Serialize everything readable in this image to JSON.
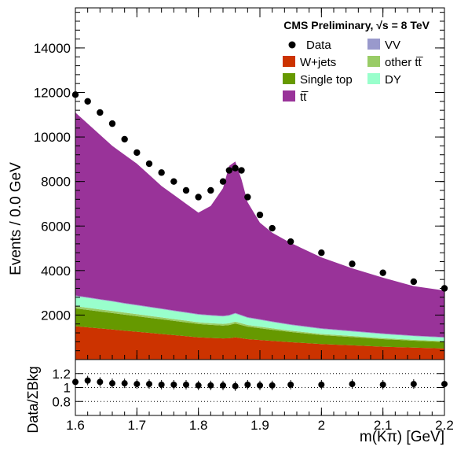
{
  "chart_data": [
    {
      "type": "area",
      "style": "stacked-histogram-with-data-points",
      "header": "CMS Preliminary, √s = 8 TeV",
      "ylabel": "Events / 0.0 GeV",
      "xlim": [
        1.6,
        2.2
      ],
      "ylim": [
        0,
        15800
      ],
      "y_ticks": [
        2000,
        4000,
        6000,
        8000,
        10000,
        12000,
        14000
      ],
      "y_tick_labels": [
        "2000",
        "4000",
        "6000",
        "8000",
        "10000",
        "12000",
        "14000"
      ],
      "legend_position": "top-right",
      "legend": [
        {
          "label": "Data",
          "kind": "marker"
        },
        {
          "label": "VV",
          "kind": "fill",
          "color": "#9999cc"
        },
        {
          "label": "W+jets",
          "kind": "fill",
          "color": "#cc3300"
        },
        {
          "label": "other tt̅",
          "kind": "fill",
          "color": "#99cc66"
        },
        {
          "label": "Single top",
          "kind": "fill",
          "color": "#669900"
        },
        {
          "label": "DY",
          "kind": "fill",
          "color": "#99ffcc"
        },
        {
          "label": "tt̅",
          "kind": "fill",
          "color": "#993399"
        }
      ],
      "x": [
        1.6,
        1.62,
        1.64,
        1.66,
        1.68,
        1.7,
        1.72,
        1.74,
        1.76,
        1.78,
        1.8,
        1.82,
        1.84,
        1.85,
        1.86,
        1.87,
        1.88,
        1.9,
        1.92,
        1.95,
        2.0,
        2.05,
        2.1,
        2.15,
        2.2
      ],
      "series": [
        {
          "name": "W+jets",
          "color": "#cc3300",
          "values": [
            1500,
            1450,
            1400,
            1350,
            1300,
            1250,
            1200,
            1150,
            1100,
            1050,
            1000,
            970,
            950,
            960,
            1000,
            960,
            920,
            880,
            840,
            780,
            700,
            640,
            580,
            540,
            500
          ]
        },
        {
          "name": "Single top",
          "color": "#669900",
          "values": [
            800,
            780,
            760,
            740,
            720,
            700,
            680,
            660,
            640,
            620,
            600,
            590,
            580,
            590,
            620,
            590,
            560,
            530,
            500,
            460,
            400,
            370,
            340,
            310,
            290
          ]
        },
        {
          "name": "other tt̅",
          "color": "#99cc66",
          "values": [
            100,
            100,
            95,
            95,
            90,
            90,
            85,
            85,
            80,
            80,
            75,
            75,
            75,
            80,
            85,
            80,
            75,
            70,
            65,
            60,
            55,
            50,
            45,
            40,
            40
          ]
        },
        {
          "name": "DY",
          "color": "#99ffcc",
          "values": [
            450,
            440,
            430,
            420,
            400,
            390,
            380,
            370,
            360,
            350,
            340,
            335,
            330,
            340,
            360,
            340,
            320,
            300,
            280,
            250,
            220,
            200,
            180,
            160,
            150
          ]
        },
        {
          "name": "VV",
          "color": "#9999cc",
          "values": [
            30,
            30,
            30,
            30,
            30,
            30,
            30,
            30,
            30,
            30,
            30,
            30,
            30,
            30,
            30,
            30,
            30,
            30,
            30,
            30,
            30,
            30,
            30,
            30,
            30
          ]
        },
        {
          "name": "tt̅",
          "color": "#993399",
          "values": [
            8220,
            7800,
            7385,
            6965,
            6660,
            6340,
            5925,
            5505,
            5190,
            4870,
            4555,
            4900,
            5735,
            6700,
            6805,
            6100,
            5165,
            4340,
            3985,
            3660,
            3185,
            2810,
            2505,
            2220,
            2090
          ]
        }
      ],
      "data_points": {
        "name": "Data",
        "x": [
          1.6,
          1.62,
          1.64,
          1.66,
          1.68,
          1.7,
          1.72,
          1.74,
          1.76,
          1.78,
          1.8,
          1.82,
          1.84,
          1.85,
          1.86,
          1.87,
          1.88,
          1.9,
          1.92,
          1.95,
          2.0,
          2.05,
          2.1,
          2.15,
          2.2
        ],
        "y": [
          11900,
          11600,
          11100,
          10600,
          9900,
          9300,
          8800,
          8400,
          8000,
          7600,
          7300,
          7600,
          8000,
          8500,
          8600,
          8500,
          7300,
          6500,
          5900,
          5300,
          4800,
          4300,
          3900,
          3500,
          3200
        ]
      }
    },
    {
      "type": "scatter",
      "ylabel": "Data/ΣBkg",
      "xlabel": "m(Kπ) [GeV]",
      "xlim": [
        1.6,
        2.2
      ],
      "ylim": [
        0.6,
        1.4
      ],
      "y_ticks": [
        0.8,
        1.0,
        1.2
      ],
      "y_tick_labels": [
        "0.8",
        "1",
        "1.2"
      ],
      "x_ticks": [
        1.6,
        1.7,
        1.8,
        1.9,
        2.0,
        2.1,
        2.2
      ],
      "x_tick_labels": [
        "1.6",
        "1.7",
        "1.8",
        "1.9",
        "2",
        "2.1",
        "2.2"
      ],
      "grid": "dotted horizontal lines at 0.8, 1.0, 1.2",
      "x": [
        1.6,
        1.62,
        1.64,
        1.66,
        1.68,
        1.7,
        1.72,
        1.74,
        1.76,
        1.78,
        1.8,
        1.82,
        1.84,
        1.86,
        1.88,
        1.9,
        1.92,
        1.95,
        2.0,
        2.05,
        2.1,
        2.15,
        2.2
      ],
      "values": [
        1.08,
        1.1,
        1.08,
        1.06,
        1.06,
        1.05,
        1.05,
        1.04,
        1.04,
        1.04,
        1.03,
        1.03,
        1.03,
        1.02,
        1.04,
        1.03,
        1.03,
        1.04,
        1.04,
        1.05,
        1.04,
        1.05,
        1.05
      ]
    }
  ]
}
